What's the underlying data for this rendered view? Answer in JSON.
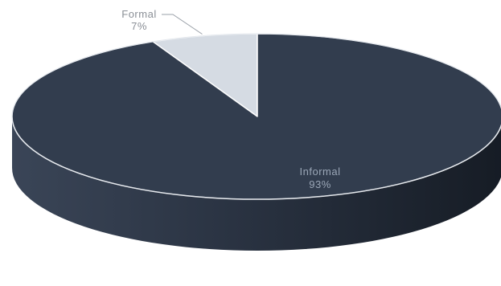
{
  "chart_data": {
    "type": "pie",
    "style": "3d",
    "slices": [
      {
        "label": "Formal",
        "percent_label": "7%",
        "value": 7,
        "color": "#d5dbe3",
        "side_color": "#a8b0bb",
        "label_color": "#8a8f96"
      },
      {
        "label": "Informal",
        "percent_label": "93%",
        "value": 93,
        "color": "#323d4e",
        "side_color": "#222a36",
        "label_color": "#9aa6b6"
      }
    ],
    "legend": "none"
  }
}
